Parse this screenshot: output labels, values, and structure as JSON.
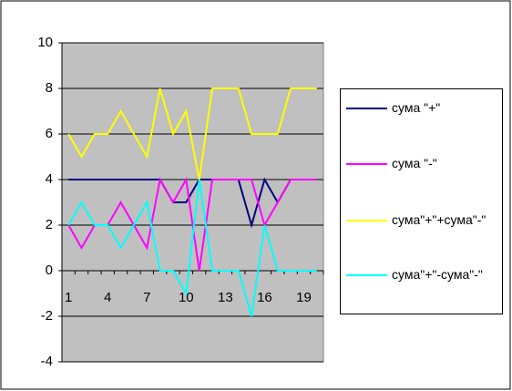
{
  "chart_data": {
    "type": "line",
    "categories": [
      "1",
      null,
      null,
      "4",
      null,
      null,
      "7",
      null,
      null,
      "10",
      null,
      null,
      "13",
      null,
      null,
      "16",
      null,
      null,
      "19",
      null
    ],
    "series": [
      {
        "name": "сума \"+\"",
        "color": "#000080",
        "values": [
          4,
          4,
          4,
          4,
          4,
          4,
          4,
          4,
          3,
          3,
          4,
          4,
          4,
          4,
          2,
          4,
          3,
          4,
          4,
          4
        ]
      },
      {
        "name": "сума \"-\"",
        "color": "#ff00ff",
        "values": [
          2,
          1,
          2,
          2,
          3,
          2,
          1,
          4,
          3,
          4,
          0,
          4,
          4,
          4,
          4,
          2,
          3,
          4,
          4,
          4
        ]
      },
      {
        "name": "сума\"+\"+сума\"-\"",
        "color": "#ffff00",
        "values": [
          6,
          5,
          6,
          6,
          7,
          6,
          5,
          8,
          6,
          7,
          4,
          8,
          8,
          8,
          6,
          6,
          6,
          8,
          8,
          8
        ]
      },
      {
        "name": "сума\"+\"-сума\"-\"",
        "color": "#00ffff",
        "values": [
          2,
          3,
          2,
          2,
          1,
          2,
          3,
          0,
          0,
          -1,
          4,
          0,
          0,
          0,
          -2,
          2,
          0,
          0,
          0,
          0
        ]
      }
    ],
    "ylim": [
      -4,
      10
    ],
    "yticks": [
      -4,
      -2,
      0,
      2,
      4,
      6,
      8,
      10
    ],
    "grid": true,
    "legend": "right"
  }
}
